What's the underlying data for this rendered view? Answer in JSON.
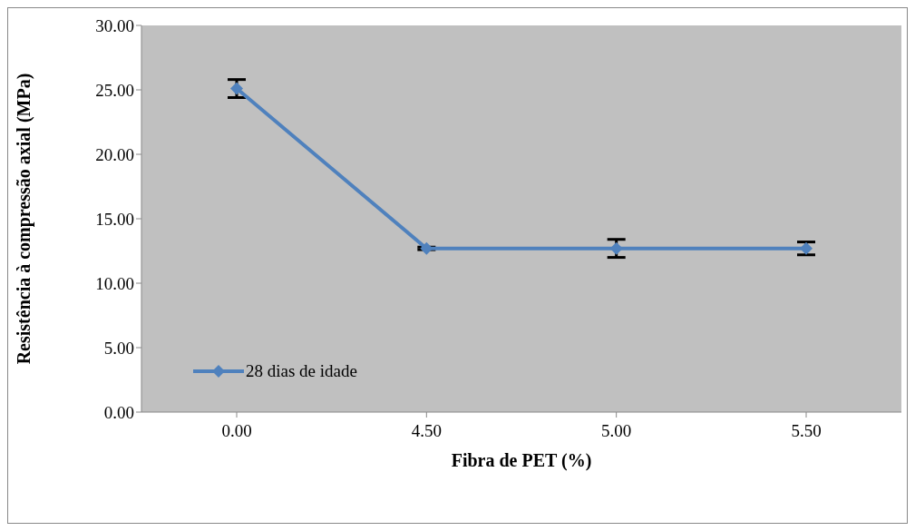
{
  "chart_data": {
    "type": "line",
    "xlabel": "Fibra de PET (%)",
    "ylabel": "Resistência à compressão axial  (MPa)",
    "categories": [
      "0.00",
      "4.50",
      "5.00",
      "5.50"
    ],
    "series": [
      {
        "name": "28 dias de idade",
        "color": "#4f81bd",
        "values": [
          25.1,
          12.7,
          12.7,
          12.7
        ],
        "errors": [
          0.7,
          0.1,
          0.7,
          0.5
        ]
      }
    ],
    "ylim": [
      0,
      30
    ],
    "yticks": [
      {
        "value": 0,
        "label": "0.00"
      },
      {
        "value": 5,
        "label": "5.00"
      },
      {
        "value": 10,
        "label": "10.00"
      },
      {
        "value": 15,
        "label": "15.00"
      },
      {
        "value": 20,
        "label": "20.00"
      },
      {
        "value": 25,
        "label": "25.00"
      },
      {
        "value": 30,
        "label": "30.00"
      }
    ],
    "legend": "bottom left",
    "marker": "diamond",
    "line_style": "solid"
  }
}
